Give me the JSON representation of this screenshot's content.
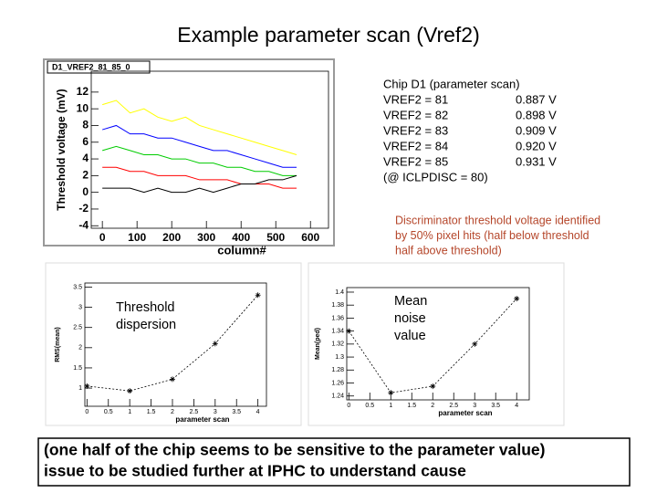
{
  "title": "Example parameter scan (Vref2)",
  "chip_info": {
    "heading": "Chip D1 (parameter scan)",
    "rows": [
      [
        "VREF2 = 81",
        "0.887 V"
      ],
      [
        "VREF2 = 82",
        "0.898 V"
      ],
      [
        "VREF2 = 83",
        "0.909 V"
      ],
      [
        "VREF2 = 84",
        "0.920 V"
      ],
      [
        "VREF2 = 85",
        "0.931 V"
      ]
    ],
    "note": "(@    ICLPDISC = 80)"
  },
  "annotation": [
    "Discriminator threshold voltage identified",
    "by 50% pixel hits (half below threshold",
    "half above threshold)"
  ],
  "footer": [
    "(one half of the chip seems to be sensitive to the parameter value)",
    "issue to be studied further at IPHC to understand cause"
  ],
  "chart_data": [
    {
      "type": "line",
      "title": "D1_VREF2_81_85_0",
      "x_label": "column#",
      "y_label": "Threshold voltage (mV)",
      "x": [
        0,
        40,
        80,
        120,
        160,
        200,
        240,
        280,
        320,
        360,
        400,
        440,
        480,
        520,
        560
      ],
      "series": [
        {
          "color": "#ffff00",
          "values": [
            10.5,
            11,
            9.5,
            10,
            9,
            8.5,
            9,
            8,
            7.5,
            7,
            6.5,
            6,
            5.5,
            5,
            4.5
          ]
        },
        {
          "color": "#0000ff",
          "values": [
            7.5,
            8,
            7,
            7,
            6.5,
            6.5,
            6,
            5.5,
            5,
            5,
            4.5,
            4,
            3.5,
            3,
            3
          ]
        },
        {
          "color": "#00cc00",
          "values": [
            5,
            5.5,
            5,
            4.5,
            4.5,
            4,
            4,
            3.5,
            3.5,
            3,
            3,
            2.5,
            2.5,
            2,
            2
          ]
        },
        {
          "color": "#ff0000",
          "values": [
            3,
            3,
            2.5,
            2.5,
            2,
            2,
            2,
            1.5,
            1.5,
            1.5,
            1,
            1,
            1,
            0.5,
            0.5
          ]
        },
        {
          "color": "#000000",
          "values": [
            0.5,
            0.5,
            0.5,
            0,
            0.5,
            0,
            0,
            0.5,
            0,
            0.5,
            1,
            1,
            1.5,
            1.5,
            2
          ]
        }
      ],
      "xlim": [
        -32,
        652
      ],
      "xticks": [
        0,
        100,
        200,
        300,
        400,
        500,
        600
      ],
      "ylim": [
        -4.3,
        14.5
      ],
      "yticks": [
        -4,
        -2,
        0,
        2,
        4,
        6,
        8,
        10,
        12
      ]
    },
    {
      "type": "line",
      "x_label": "parameter scan",
      "y_label": "RMS(mean)",
      "annotation": [
        "Threshold",
        "dispersion"
      ],
      "x": [
        0,
        1,
        2,
        3,
        4
      ],
      "series": [
        {
          "color": "#000000",
          "values": [
            1.05,
            0.93,
            1.22,
            2.1,
            3.3
          ]
        }
      ],
      "xlim": [
        -0.05,
        4.2
      ],
      "xticks": [
        0,
        0.5,
        1,
        1.5,
        2,
        2.5,
        3,
        3.5,
        4
      ],
      "ylim": [
        0.55,
        3.6
      ],
      "yticks": [
        1,
        1.5,
        2,
        2.5,
        3,
        3.5
      ]
    },
    {
      "type": "line",
      "x_label": "parameter scan",
      "y_label": "Mean(ped)",
      "annotation": [
        "Mean",
        "noise",
        "value"
      ],
      "x": [
        0,
        1,
        2,
        3,
        4
      ],
      "series": [
        {
          "color": "#000000",
          "values": [
            1.34,
            1.245,
            1.255,
            1.32,
            1.39
          ]
        }
      ],
      "xlim": [
        -0.05,
        4.3
      ],
      "xticks": [
        0,
        0.5,
        1,
        1.5,
        2,
        2.5,
        3,
        3.5,
        4
      ],
      "ylim": [
        1.234,
        1.407
      ],
      "yticks": [
        1.24,
        1.26,
        1.28,
        1.3,
        1.32,
        1.34,
        1.36,
        1.38,
        1.4
      ]
    }
  ]
}
